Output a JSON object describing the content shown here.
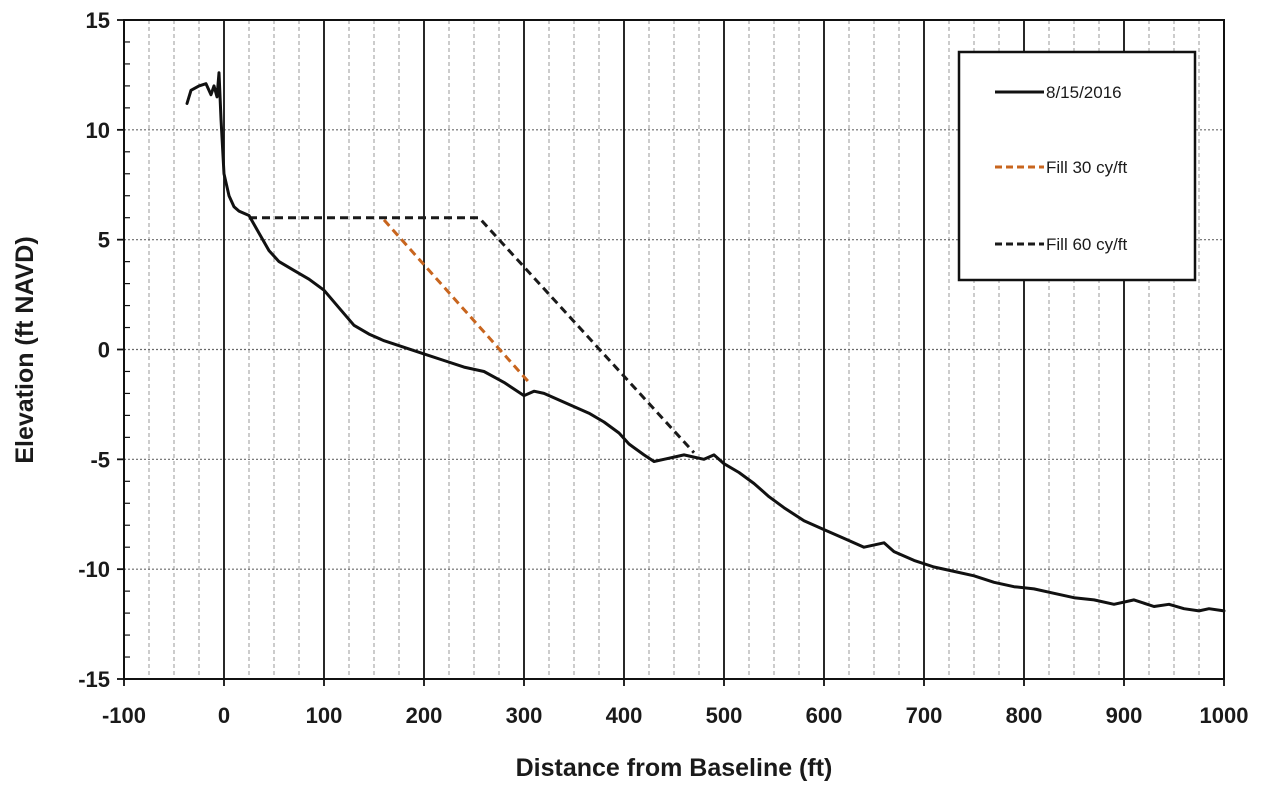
{
  "chart_data": {
    "type": "line",
    "title": "",
    "xlabel": "Distance from Baseline (ft)",
    "ylabel": "Elevation (ft NAVD)",
    "xlim": [
      -100,
      1000
    ],
    "ylim": [
      -15,
      15
    ],
    "x_ticks": [
      -100,
      0,
      100,
      200,
      300,
      400,
      500,
      600,
      700,
      800,
      900,
      1000
    ],
    "y_ticks": [
      -15,
      -10,
      -5,
      0,
      5,
      10,
      15
    ],
    "x_tick_labels": [
      "-100",
      "0",
      "100",
      "200",
      "300",
      "400",
      "500",
      "600",
      "700",
      "800",
      "900",
      "1000"
    ],
    "y_tick_labels": [
      "-15",
      "-10",
      "-5",
      "0",
      "5",
      "10",
      "15"
    ],
    "x_minor_step": 25,
    "grid": true,
    "legend_position": "top-right",
    "series": [
      {
        "name": "8/15/2016",
        "color": "#111111",
        "style": "solid",
        "x": [
          -37,
          -33,
          -25,
          -18,
          -13,
          -10,
          -7,
          -5,
          -3,
          0,
          5,
          10,
          15,
          25,
          35,
          45,
          55,
          70,
          85,
          100,
          115,
          130,
          145,
          160,
          180,
          200,
          220,
          240,
          260,
          280,
          300,
          310,
          320,
          335,
          350,
          365,
          380,
          395,
          405,
          420,
          430,
          440,
          450,
          460,
          470,
          480,
          490,
          500,
          515,
          530,
          545,
          560,
          580,
          600,
          620,
          640,
          660,
          670,
          690,
          710,
          730,
          750,
          770,
          790,
          810,
          830,
          850,
          870,
          890,
          910,
          930,
          945,
          960,
          975,
          985,
          1000
        ],
        "y": [
          11.2,
          11.8,
          12.0,
          12.1,
          11.6,
          12.0,
          11.5,
          12.6,
          10.5,
          8.0,
          7.0,
          6.5,
          6.3,
          6.1,
          5.3,
          4.5,
          4.0,
          3.6,
          3.2,
          2.7,
          1.9,
          1.1,
          0.7,
          0.4,
          0.1,
          -0.2,
          -0.5,
          -0.8,
          -1.0,
          -1.5,
          -2.1,
          -1.9,
          -2.0,
          -2.3,
          -2.6,
          -2.9,
          -3.3,
          -3.8,
          -4.3,
          -4.8,
          -5.1,
          -5.0,
          -4.9,
          -4.8,
          -4.9,
          -5.0,
          -4.8,
          -5.2,
          -5.6,
          -6.1,
          -6.7,
          -7.2,
          -7.8,
          -8.2,
          -8.6,
          -9.0,
          -8.8,
          -9.2,
          -9.6,
          -9.9,
          -10.1,
          -10.3,
          -10.6,
          -10.8,
          -10.9,
          -11.1,
          -11.3,
          -11.4,
          -11.6,
          -11.4,
          -11.7,
          -11.6,
          -11.8,
          -11.9,
          -11.8,
          -11.9
        ]
      },
      {
        "name": "Fill 30 cy/ft",
        "color": "#c8651e",
        "style": "dashed",
        "x": [
          160,
          307
        ],
        "y": [
          5.9,
          -1.6
        ]
      },
      {
        "name": "Fill 60 cy/ft",
        "color": "#1a1a1a",
        "style": "dashed",
        "x": [
          25,
          255,
          470
        ],
        "y": [
          6.0,
          6.0,
          -4.7
        ]
      }
    ]
  }
}
